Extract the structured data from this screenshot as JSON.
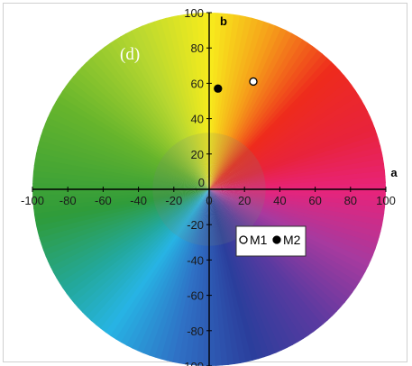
{
  "chart_data": {
    "type": "scatter",
    "title": "",
    "panel_label": "(d)",
    "xlabel": "a",
    "ylabel": "b",
    "xlim": [
      -100,
      100
    ],
    "ylim": [
      -100,
      100
    ],
    "xticks": [
      -100,
      -80,
      -60,
      -40,
      -20,
      0,
      20,
      40,
      60,
      80,
      100
    ],
    "yticks": [
      -100,
      -80,
      -60,
      -40,
      -20,
      0,
      20,
      40,
      60,
      80,
      100
    ],
    "background": "CIELAB a*-b* color wheel",
    "legend_position": "center-right",
    "series": [
      {
        "name": "M1",
        "marker": "open-circle",
        "color": "#000000",
        "fill": "#ffffff",
        "x": [
          25
        ],
        "y": [
          61
        ]
      },
      {
        "name": "M2",
        "marker": "filled-circle",
        "color": "#000000",
        "fill": "#000000",
        "x": [
          5
        ],
        "y": [
          57
        ]
      }
    ]
  }
}
